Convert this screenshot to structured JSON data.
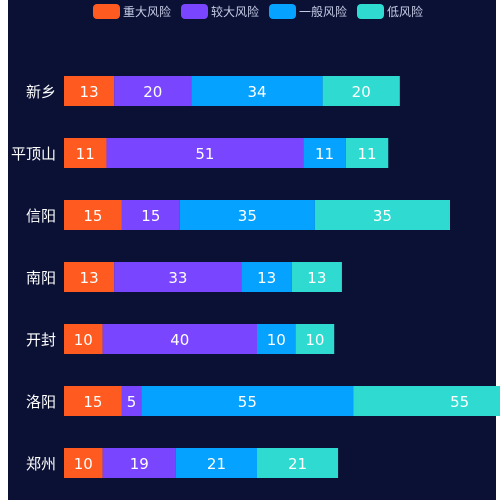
{
  "colors": {
    "background": "#0a1135",
    "border": "#ffffff"
  },
  "chart_data": {
    "type": "bar",
    "orientation": "horizontal",
    "stacked": true,
    "legend_placement": "top-center",
    "grid": false,
    "xlim": [
      0,
      140
    ],
    "categories": [
      "新乡",
      "平顶山",
      "信阳",
      "南阳",
      "开封",
      "洛阳",
      "郑州"
    ],
    "series": [
      {
        "name": "重大风险",
        "color": "#ff5a1f",
        "values": [
          13,
          11,
          15,
          13,
          10,
          15,
          10
        ]
      },
      {
        "name": "较大风险",
        "color": "#7a45ff",
        "values": [
          20,
          51,
          15,
          33,
          40,
          5,
          19
        ]
      },
      {
        "name": "一般风险",
        "color": "#06a2ff",
        "values": [
          34,
          11,
          35,
          13,
          10,
          55,
          21
        ]
      },
      {
        "name": "低风险",
        "color": "#2fdbd0",
        "values": [
          20,
          11,
          35,
          13,
          10,
          55,
          21
        ]
      }
    ]
  }
}
